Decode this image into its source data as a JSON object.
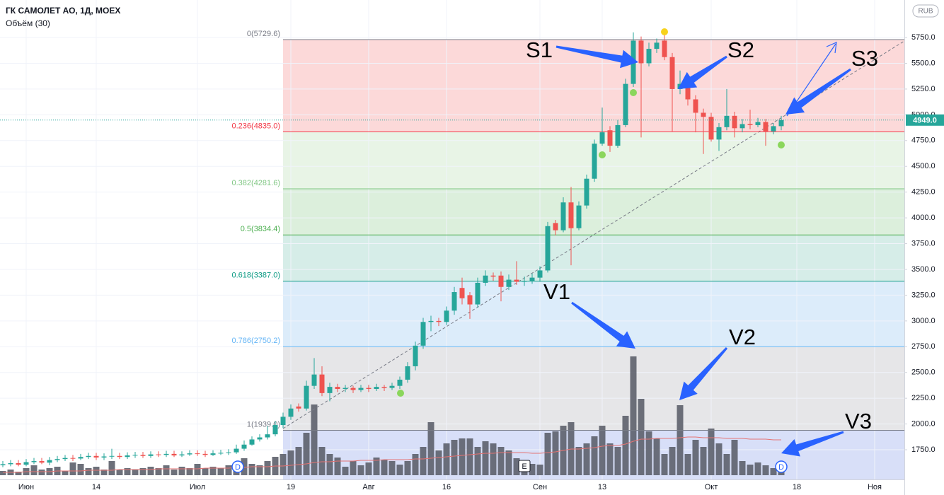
{
  "chart_data": {
    "type": "candlestick",
    "title": "ГК САМОЛЕТ АО, 1Д, MOEX",
    "volume_title": "Объём (30)",
    "currency": "RUB",
    "categories": [
      null,
      null,
      null,
      "Июн",
      null,
      null,
      null,
      null,
      null,
      null,
      null,
      null,
      "14",
      null,
      null,
      null,
      null,
      null,
      null,
      null,
      null,
      null,
      null,
      null,
      null,
      "Июл",
      null,
      null,
      null,
      null,
      null,
      null,
      null,
      null,
      null,
      null,
      null,
      "19",
      null,
      null,
      null,
      null,
      null,
      null,
      null,
      null,
      null,
      "Авг",
      null,
      null,
      null,
      null,
      null,
      null,
      null,
      null,
      null,
      "16",
      null,
      null,
      null,
      null,
      null,
      null,
      null,
      null,
      null,
      null,
      null,
      "Сен",
      null,
      null,
      null,
      null,
      null,
      null,
      null,
      "13",
      null,
      null,
      null,
      null,
      null,
      null,
      null,
      null,
      null,
      null,
      null,
      null,
      null,
      "Окт",
      null,
      null,
      null,
      null,
      null,
      null,
      null,
      null,
      null,
      null,
      "18",
      null,
      null,
      null,
      null,
      null,
      null,
      null,
      null,
      null,
      "Ноя"
    ],
    "open": [
      1600,
      1610,
      1620,
      1605,
      1630,
      1640,
      1625,
      1650,
      1660,
      1670,
      1665,
      1680,
      1690,
      1675,
      1685,
      1690,
      1680,
      1695,
      1700,
      1690,
      1705,
      1700,
      1710,
      1695,
      1705,
      1715,
      1710,
      1700,
      1715,
      1720,
      1725,
      1760,
      1800,
      1850,
      1870,
      1900,
      1990,
      2070,
      2170,
      2150,
      2370,
      2480,
      2300,
      2360,
      2340,
      2350,
      2330,
      2350,
      2340,
      2360,
      2350,
      2370,
      2430,
      2560,
      2760,
      2990,
      3000,
      2990,
      3100,
      3320,
      3250,
      3160,
      3370,
      3440,
      3440,
      3330,
      3400,
      3380,
      3390,
      3420,
      3490,
      3950,
      3880,
      4150,
      3900,
      4120,
      4380,
      4720,
      4850,
      4700,
      4900,
      5300,
      5720,
      5500,
      5640,
      5720,
      5560,
      5250,
      5300,
      5150,
      5020,
      4980,
      4760,
      4880,
      4990,
      4870,
      4910,
      4900,
      4930,
      4840,
      4890,
      null,
      null,
      null,
      null,
      null,
      null,
      null,
      null,
      null,
      null,
      null,
      null
    ],
    "high": [
      1640,
      1650,
      1650,
      1660,
      1670,
      1670,
      1680,
      1690,
      1700,
      1700,
      1710,
      1720,
      1720,
      1715,
      1760,
      1720,
      1725,
      1730,
      1730,
      1735,
      1735,
      1740,
      1740,
      1735,
      1745,
      1745,
      1740,
      1745,
      1750,
      1755,
      1800,
      1840,
      1880,
      1900,
      1980,
      2030,
      2110,
      2190,
      2200,
      2420,
      2640,
      2560,
      2400,
      2390,
      2380,
      2370,
      2380,
      2380,
      2390,
      2380,
      2400,
      2460,
      2600,
      2800,
      3030,
      3050,
      3030,
      3140,
      3330,
      3420,
      3280,
      3420,
      3490,
      3470,
      3480,
      3450,
      3580,
      3430,
      3460,
      3530,
      3960,
      3980,
      4200,
      4300,
      4160,
      4420,
      4760,
      5070,
      4890,
      4950,
      5350,
      5800,
      5760,
      5700,
      5740,
      5780,
      5600,
      5430,
      5340,
      5190,
      5060,
      5020,
      4920,
      5250,
      5030,
      4960,
      5050,
      4970,
      4960,
      4920,
      4990,
      null,
      null,
      null,
      null,
      null,
      null,
      null,
      null,
      null,
      null,
      null,
      null
    ],
    "low": [
      1580,
      1590,
      1590,
      1590,
      1610,
      1610,
      1600,
      1630,
      1640,
      1640,
      1650,
      1660,
      1650,
      1650,
      1660,
      1660,
      1660,
      1670,
      1670,
      1670,
      1680,
      1680,
      1680,
      1680,
      1690,
      1690,
      1680,
      1690,
      1700,
      1700,
      1710,
      1740,
      1790,
      1830,
      1850,
      1880,
      1960,
      2040,
      2120,
      2130,
      2340,
      2270,
      2220,
      2310,
      2310,
      2300,
      2310,
      2310,
      2320,
      2320,
      2330,
      2340,
      2400,
      2520,
      2730,
      2900,
      2950,
      2960,
      3060,
      3160,
      3020,
      3130,
      3340,
      3390,
      3190,
      3300,
      3350,
      3340,
      3360,
      3380,
      3470,
      3830,
      3860,
      3540,
      3880,
      4090,
      4350,
      4700,
      4640,
      4680,
      4880,
      5270,
      4780,
      5470,
      5600,
      5530,
      4840,
      5200,
      5090,
      4830,
      4620,
      4740,
      4650,
      4850,
      4780,
      4830,
      4860,
      4880,
      4700,
      4810,
      4850,
      null,
      null,
      null,
      null,
      null,
      null,
      null,
      null,
      null,
      null,
      null,
      null
    ],
    "close": [
      1610,
      1620,
      1605,
      1630,
      1640,
      1625,
      1650,
      1660,
      1670,
      1665,
      1680,
      1690,
      1675,
      1685,
      1690,
      1680,
      1695,
      1700,
      1690,
      1705,
      1700,
      1710,
      1695,
      1705,
      1715,
      1710,
      1700,
      1715,
      1720,
      1725,
      1760,
      1800,
      1850,
      1870,
      1900,
      1990,
      2070,
      2150,
      2150,
      2370,
      2480,
      2300,
      2360,
      2340,
      2350,
      2330,
      2350,
      2340,
      2360,
      2350,
      2370,
      2430,
      2560,
      2760,
      2990,
      3000,
      2990,
      3100,
      3280,
      3220,
      3160,
      3370,
      3440,
      3430,
      3330,
      3400,
      3380,
      3390,
      3420,
      3490,
      3920,
      3880,
      4150,
      3900,
      4120,
      4380,
      4720,
      4830,
      4700,
      4900,
      5300,
      5720,
      5500,
      5640,
      5700,
      5560,
      5250,
      5300,
      5150,
      5020,
      4980,
      4760,
      4880,
      4990,
      4870,
      4910,
      4900,
      4930,
      4840,
      4890,
      4949,
      null,
      null,
      null,
      null,
      null,
      null,
      null,
      null,
      null,
      null,
      null,
      null
    ],
    "volume": [
      6,
      8,
      5,
      10,
      14,
      8,
      10,
      12,
      6,
      18,
      16,
      10,
      12,
      8,
      20,
      8,
      10,
      8,
      10,
      12,
      10,
      14,
      8,
      12,
      10,
      16,
      10,
      12,
      10,
      14,
      18,
      24,
      16,
      14,
      20,
      26,
      30,
      35,
      40,
      60,
      100,
      40,
      30,
      25,
      12,
      20,
      14,
      18,
      25,
      22,
      20,
      15,
      20,
      30,
      40,
      75,
      35,
      45,
      50,
      52,
      52,
      40,
      48,
      45,
      40,
      35,
      24,
      20,
      16,
      15,
      60,
      62,
      70,
      75,
      40,
      45,
      55,
      70,
      45,
      40,
      84,
      168,
      108,
      62,
      52,
      30,
      40,
      99,
      30,
      50,
      40,
      66,
      45,
      30,
      50,
      20,
      15,
      18,
      14,
      10,
      18,
      null,
      null,
      null,
      null,
      null,
      null,
      null,
      null,
      null,
      null,
      null,
      null
    ],
    "volume_ma": [
      4,
      4,
      4,
      5,
      5,
      5,
      5,
      6,
      6,
      6,
      6,
      7,
      7,
      7,
      7,
      8,
      8,
      8,
      8,
      8,
      9,
      9,
      9,
      9,
      9,
      9,
      10,
      10,
      10,
      10,
      11,
      11,
      12,
      12,
      12,
      13,
      13,
      14,
      15,
      16,
      18,
      19,
      19,
      20,
      20,
      20,
      21,
      21,
      21,
      22,
      22,
      22,
      22,
      23,
      23,
      24,
      25,
      26,
      27,
      28,
      29,
      30,
      31,
      31,
      32,
      32,
      32,
      32,
      31,
      31,
      32,
      33,
      35,
      37,
      37,
      38,
      39,
      41,
      42,
      42,
      44,
      48,
      51,
      51,
      52,
      52,
      52,
      53,
      54,
      54,
      53,
      53,
      53,
      52,
      52,
      52,
      51,
      51,
      51,
      50,
      50,
      null,
      null,
      null,
      null,
      null,
      null,
      null,
      null,
      null,
      null,
      null,
      null
    ],
    "up_color": "#26a69a",
    "down_color": "#ef5350",
    "volume_color": "#5d606b",
    "volume_ma_color": "#e57373",
    "ylim": [
      1462,
      6114
    ],
    "vlim": [
      0,
      200
    ],
    "yticks": [
      {
        "value": 1750,
        "label": "1750.0"
      },
      {
        "value": 2000,
        "label": "2000.0"
      },
      {
        "value": 2250,
        "label": "2250.0"
      },
      {
        "value": 2500,
        "label": "2500.0"
      },
      {
        "value": 2750,
        "label": "2750.0"
      },
      {
        "value": 3000,
        "label": "3000.0"
      },
      {
        "value": 3250,
        "label": "3250.0"
      },
      {
        "value": 3500,
        "label": "3500.0"
      },
      {
        "value": 3750,
        "label": "3750.0"
      },
      {
        "value": 4000,
        "label": "4000.0"
      },
      {
        "value": 4250,
        "label": "4250.0"
      },
      {
        "value": 4500,
        "label": "4500.0"
      },
      {
        "value": 4750,
        "label": "4750.0"
      },
      {
        "value": 5000,
        "label": "5000.0"
      },
      {
        "value": 5250,
        "label": "5250.0"
      },
      {
        "value": 5500,
        "label": "5500.0"
      },
      {
        "value": 5750,
        "label": "5750.0"
      }
    ],
    "grid": true,
    "last_price": {
      "value": 4949,
      "label": "4949.0",
      "color": "#26a69a"
    },
    "fib_levels": [
      {
        "value": 5729.6,
        "label": "0(5729.6)",
        "color": "#787b86",
        "fill": "#fcd9d9"
      },
      {
        "value": 4835.0,
        "label": "0.236(4835.0)",
        "color": "#f23645",
        "fill": "#e8f4e6"
      },
      {
        "value": 4281.6,
        "label": "0.382(4281.6)",
        "color": "#81c784",
        "fill": "#dcefdc"
      },
      {
        "value": 3834.4,
        "label": "0.5(3834.4)",
        "color": "#4caf50",
        "fill": "#d6ede8"
      },
      {
        "value": 3387.0,
        "label": "0.618(3387.0)",
        "color": "#089981",
        "fill": "#dcecfa"
      },
      {
        "value": 2750.2,
        "label": "0.786(2750.2)",
        "color": "#64b5f6",
        "fill": "#e6e6e8"
      },
      {
        "value": 1939.0,
        "label": "1(1939.0)",
        "color": "#787b86",
        "fill": "#d8dff8"
      }
    ],
    "annotations": [
      "S1",
      "S2",
      "S3",
      "V1",
      "V2",
      "V3"
    ],
    "event_markers": [
      "D",
      "E",
      "D"
    ]
  }
}
